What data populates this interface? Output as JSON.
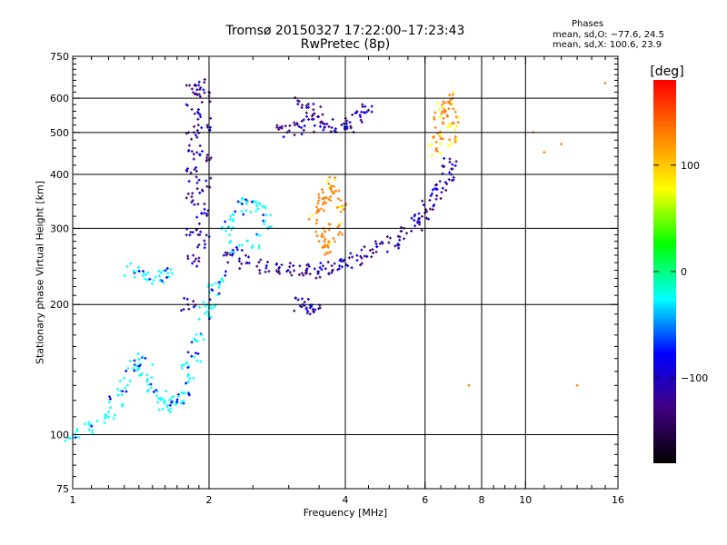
{
  "chart_data": {
    "type": "scatter",
    "title": "Tromsø 20150327 17:22:00–17:23:43",
    "subtitle": "RwPretec (8p)",
    "xlabel": "Frequency [MHz]",
    "ylabel": "Stationary phase Virtual Height [km]",
    "x_scale": "log",
    "y_scale": "log",
    "xlim": [
      1,
      16
    ],
    "ylim": [
      75,
      750
    ],
    "x_ticks": [
      1,
      2,
      4,
      6,
      8,
      10,
      16
    ],
    "y_ticks": [
      75,
      100,
      200,
      300,
      400,
      500,
      600,
      750
    ],
    "grid_x": [
      2,
      4,
      6,
      8,
      10
    ],
    "grid_y": [
      100,
      200,
      300,
      400,
      500,
      600
    ],
    "phases_box": {
      "heading": "Phases",
      "line_o": "mean, sd,O: −77.6, 24.5",
      "line_x": "mean, sd,X: 100.6, 23.9"
    },
    "colorbar": {
      "label": "[deg]",
      "range": [
        -180,
        180
      ],
      "ticks": [
        100,
        0,
        -100
      ],
      "tick_labels": [
        "100",
        "0",
        "−100"
      ],
      "colors": [
        "#ff0000",
        "#ff8000",
        "#ffff00",
        "#00ff00",
        "#00ffff",
        "#0000ff",
        "#40007f",
        "#000000"
      ]
    },
    "series": [
      {
        "points": [
          [
            1.0,
            100
          ],
          [
            1.1,
            104
          ],
          [
            1.2,
            110
          ],
          [
            1.25,
            120
          ],
          [
            1.3,
            130
          ],
          [
            1.35,
            145
          ],
          [
            1.4,
            150
          ],
          [
            1.45,
            140
          ],
          [
            1.5,
            130
          ],
          [
            1.55,
            122
          ],
          [
            1.6,
            118
          ],
          [
            1.65,
            116
          ],
          [
            1.7,
            120
          ],
          [
            1.75,
            128
          ],
          [
            1.8,
            140
          ],
          [
            1.85,
            150
          ],
          [
            1.9,
            170
          ],
          [
            1.95,
            190
          ],
          [
            2.0,
            200
          ],
          [
            2.05,
            215
          ],
          [
            2.1,
            230
          ],
          [
            1.35,
            240
          ],
          [
            1.45,
            235
          ],
          [
            1.55,
            232
          ],
          [
            1.6,
            235
          ]
        ],
        "phase": -40
      },
      {
        "points": [
          [
            1.8,
            200
          ],
          [
            1.85,
            250
          ],
          [
            1.85,
            300
          ],
          [
            1.85,
            350
          ],
          [
            1.85,
            400
          ],
          [
            1.85,
            450
          ],
          [
            1.85,
            500
          ],
          [
            1.85,
            560
          ],
          [
            1.85,
            620
          ],
          [
            1.9,
            650
          ],
          [
            1.95,
            600
          ],
          [
            1.95,
            520
          ],
          [
            1.95,
            440
          ],
          [
            1.95,
            380
          ],
          [
            1.95,
            330
          ],
          [
            1.95,
            280
          ]
        ],
        "phase": -110
      },
      {
        "points": [
          [
            2.2,
            260
          ],
          [
            2.4,
            250
          ],
          [
            2.6,
            245
          ],
          [
            2.8,
            245
          ],
          [
            3.0,
            240
          ],
          [
            3.2,
            240
          ],
          [
            3.4,
            238
          ],
          [
            3.6,
            240
          ],
          [
            3.8,
            245
          ],
          [
            4.0,
            250
          ],
          [
            4.2,
            255
          ],
          [
            4.5,
            262
          ],
          [
            4.8,
            270
          ],
          [
            5.1,
            280
          ],
          [
            5.4,
            292
          ],
          [
            5.7,
            305
          ],
          [
            5.9,
            320
          ],
          [
            6.1,
            340
          ],
          [
            6.3,
            360
          ],
          [
            6.5,
            380
          ],
          [
            6.7,
            400
          ],
          [
            6.8,
            420
          ]
        ],
        "phase": -110
      },
      {
        "points": [
          [
            3.4,
            320
          ],
          [
            3.5,
            340
          ],
          [
            3.6,
            360
          ],
          [
            3.7,
            380
          ],
          [
            3.8,
            360
          ],
          [
            3.9,
            340
          ],
          [
            3.8,
            300
          ],
          [
            3.7,
            280
          ],
          [
            3.6,
            270
          ],
          [
            3.5,
            290
          ]
        ],
        "phase": 120
      },
      {
        "points": [
          [
            2.9,
            500
          ],
          [
            3.1,
            510
          ],
          [
            3.3,
            520
          ],
          [
            3.5,
            530
          ],
          [
            3.7,
            520
          ],
          [
            3.9,
            510
          ],
          [
            4.1,
            520
          ],
          [
            4.3,
            540
          ],
          [
            4.5,
            560
          ],
          [
            3.2,
            580
          ],
          [
            3.4,
            560
          ]
        ],
        "phase": -110
      },
      {
        "points": [
          [
            6.3,
            460
          ],
          [
            6.4,
            500
          ],
          [
            6.5,
            540
          ],
          [
            6.6,
            580
          ],
          [
            6.7,
            600
          ],
          [
            6.8,
            560
          ],
          [
            6.9,
            520
          ],
          [
            7.0,
            480
          ]
        ],
        "phase": 110
      },
      {
        "points": [
          [
            2.2,
            300
          ],
          [
            2.3,
            320
          ],
          [
            2.4,
            340
          ],
          [
            2.5,
            350
          ],
          [
            2.6,
            330
          ],
          [
            2.7,
            310
          ],
          [
            2.5,
            280
          ],
          [
            2.3,
            270
          ]
        ],
        "phase": -40
      },
      {
        "points": [
          [
            3.2,
            200
          ],
          [
            3.3,
            198
          ],
          [
            3.4,
            196
          ]
        ],
        "phase": -100
      },
      {
        "points": [
          [
            13,
            130
          ],
          [
            12,
            470
          ],
          [
            7.5,
            130
          ],
          [
            11,
            450
          ],
          [
            15,
            650
          ],
          [
            10.4,
            500
          ]
        ],
        "phase": 150
      }
    ]
  }
}
